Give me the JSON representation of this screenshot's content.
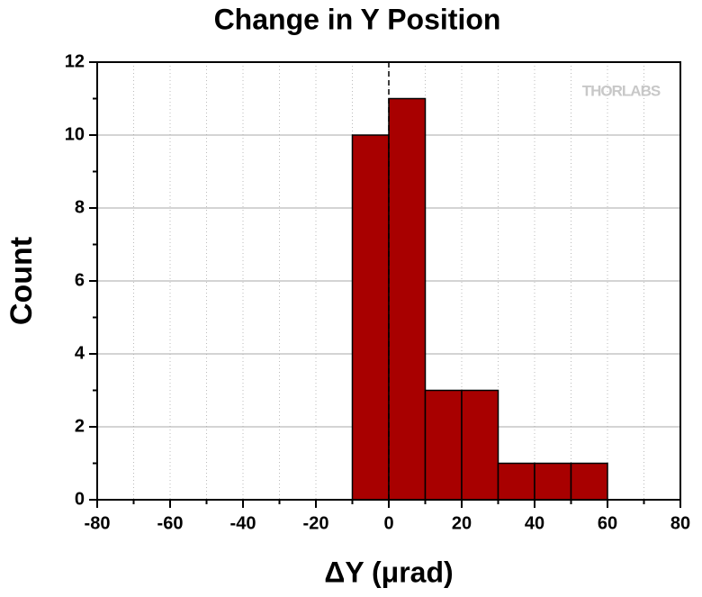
{
  "chart_data": {
    "type": "histogram",
    "title": "Change in Y Position",
    "xlabel": "ΔY (μrad)",
    "ylabel": "Count",
    "watermark": "THORLABS",
    "bins": [
      -10,
      0,
      10,
      20,
      30,
      40,
      50,
      60
    ],
    "values": [
      10,
      11,
      3,
      3,
      1,
      1,
      1
    ],
    "color": "#a80000",
    "xlim": [
      -80,
      80
    ],
    "xticks": [
      -80,
      -60,
      -40,
      -20,
      0,
      20,
      40,
      60,
      80
    ],
    "ylim": [
      0,
      12
    ],
    "yticks": [
      0,
      2,
      4,
      6,
      8,
      10,
      12
    ],
    "grid": true,
    "vline": 0
  }
}
